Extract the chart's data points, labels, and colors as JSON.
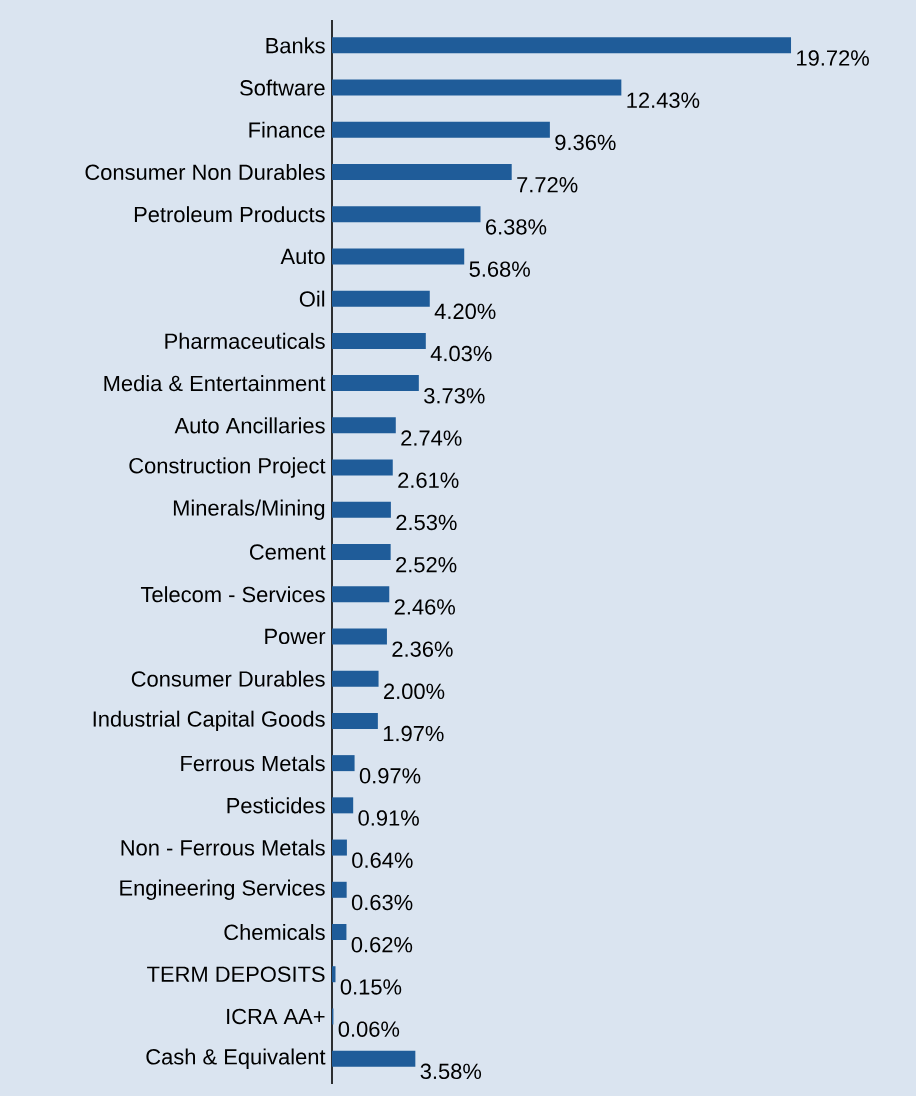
{
  "chart_data": {
    "type": "bar",
    "orientation": "horizontal",
    "color": "#1f5c99",
    "categories": [
      "Banks",
      "Software",
      "Finance",
      "Consumer Non Durables",
      "Petroleum Products",
      "Auto",
      "Oil",
      "Pharmaceuticals",
      "Media & Entertainment",
      "Auto Ancillaries",
      "Construction Project",
      "Minerals/Mining",
      "Cement",
      "Telecom - Services",
      "Power",
      "Consumer Durables",
      "Industrial Capital Goods",
      "Ferrous Metals",
      "Pesticides",
      "Non - Ferrous Metals",
      "Engineering Services",
      "Chemicals",
      "TERM DEPOSITS",
      "ICRA AA+",
      "Cash & Equivalent"
    ],
    "values": [
      19.72,
      12.43,
      9.36,
      7.72,
      6.38,
      5.68,
      4.2,
      4.03,
      3.73,
      2.74,
      2.61,
      2.53,
      2.52,
      2.46,
      2.36,
      2.0,
      1.97,
      0.97,
      0.91,
      0.64,
      0.63,
      0.62,
      0.15,
      0.06,
      3.58
    ],
    "value_labels": [
      "19.72%",
      "12.43%",
      "9.36%",
      "7.72%",
      "6.38%",
      "5.68%",
      "4.20%",
      "4.03%",
      "3.73%",
      "2.74%",
      "2.61%",
      "2.53%",
      "2.52%",
      "2.46%",
      "2.36%",
      "2.00%",
      "1.97%",
      "0.97%",
      "0.91%",
      "0.64%",
      "0.63%",
      "0.62%",
      "0.15%",
      "0.06%",
      "3.58%"
    ]
  }
}
